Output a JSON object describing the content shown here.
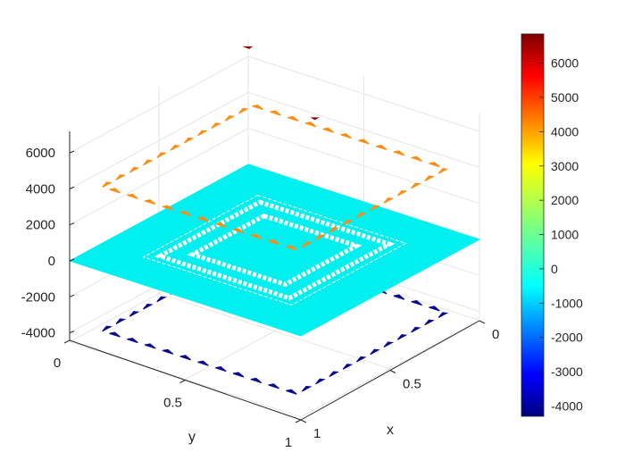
{
  "chart_data": {
    "type": "surface",
    "colormap": "jet",
    "title": "",
    "xlabel": "x",
    "ylabel": "y",
    "zlabel": "",
    "xlim": [
      0,
      1
    ],
    "ylim": [
      0,
      1
    ],
    "zlim": [
      -4500,
      7000
    ],
    "x_ticks": [
      "0",
      "0.5",
      "1"
    ],
    "y_ticks": [
      "0",
      "0.5",
      "1"
    ],
    "z_ticks": [
      "-4000",
      "-2000",
      "0",
      "2000",
      "4000",
      "6000"
    ],
    "grid": true,
    "colorbar": {
      "range": [
        -4300,
        6850
      ],
      "ticks": [
        "6000",
        "5000",
        "4000",
        "3000",
        "2000",
        "1000",
        "0",
        "-1000",
        "-2000",
        "-3000",
        "-4000"
      ]
    },
    "surface": {
      "base_value": 0,
      "description_values": [
        {
          "name": "flat plane",
          "z": 0
        },
        {
          "name": "upper ring",
          "z": 4000
        },
        {
          "name": "lower ring",
          "z": -4000
        },
        {
          "name": "peak spike",
          "z": 6800
        }
      ]
    },
    "colors": {
      "plane": "#00f0f0",
      "upper_ring": "#ff8c10",
      "lower_ring": "#0a0a90",
      "spike": "#8b0000",
      "inner_ring": "#ffffff",
      "axis": "#262626",
      "grid": "#e6e6e6"
    }
  }
}
